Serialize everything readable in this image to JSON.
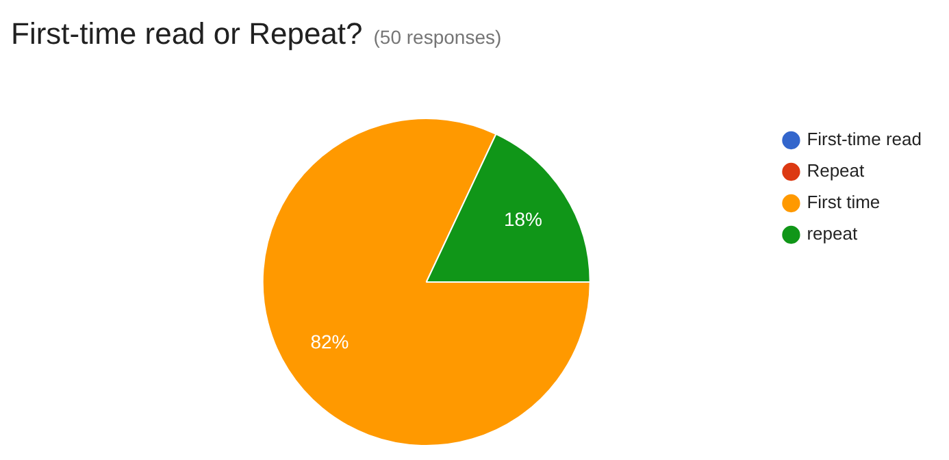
{
  "chart_data": {
    "type": "pie",
    "title": "First-time read or Repeat?",
    "subtitle": "(50 responses)",
    "categories": [
      "First-time read",
      "Repeat",
      "First time",
      "repeat"
    ],
    "values": [
      0,
      0,
      82,
      18
    ],
    "colors": [
      "#3366cc",
      "#dc3912",
      "#ff9900",
      "#109618"
    ],
    "value_labels": [
      null,
      null,
      "82%",
      "18%"
    ],
    "legend": "right"
  }
}
